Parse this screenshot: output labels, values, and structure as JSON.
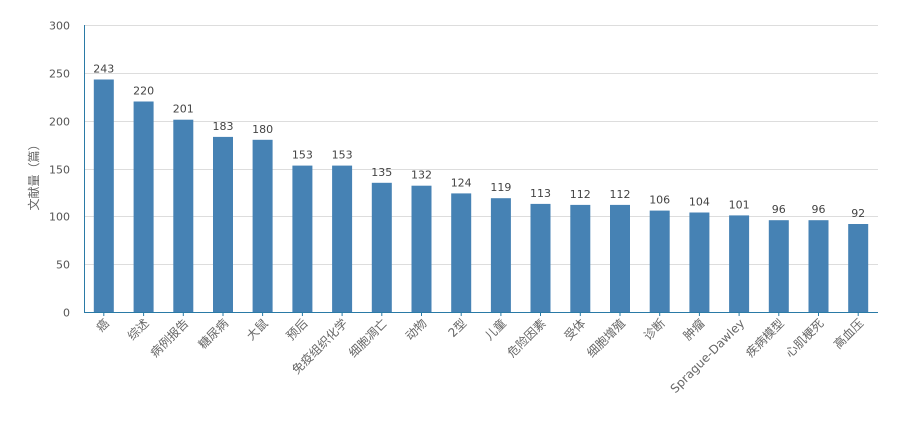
{
  "chart_data": {
    "type": "bar",
    "title": "",
    "xlabel": "",
    "ylabel": "文献量（篇）",
    "ylim": [
      0,
      300
    ],
    "yticks": [
      0,
      50,
      100,
      150,
      200,
      250,
      300
    ],
    "grid": true,
    "bar_color": "#4682b4",
    "categories": [
      "癌",
      "综述",
      "病例报告",
      "糖尿病",
      "大鼠",
      "预后",
      "免疫组织化学",
      "细胞凋亡",
      "动物",
      "2型",
      "儿童",
      "危险因素",
      "受体",
      "细胞增殖",
      "诊断",
      "肿瘤",
      "Sprague-Dawley",
      "疾病模型",
      "心肌梗死",
      "高血压"
    ],
    "values": [
      243,
      220,
      201,
      183,
      180,
      153,
      153,
      135,
      132,
      124,
      119,
      113,
      112,
      112,
      106,
      104,
      101,
      96,
      96,
      92
    ]
  }
}
